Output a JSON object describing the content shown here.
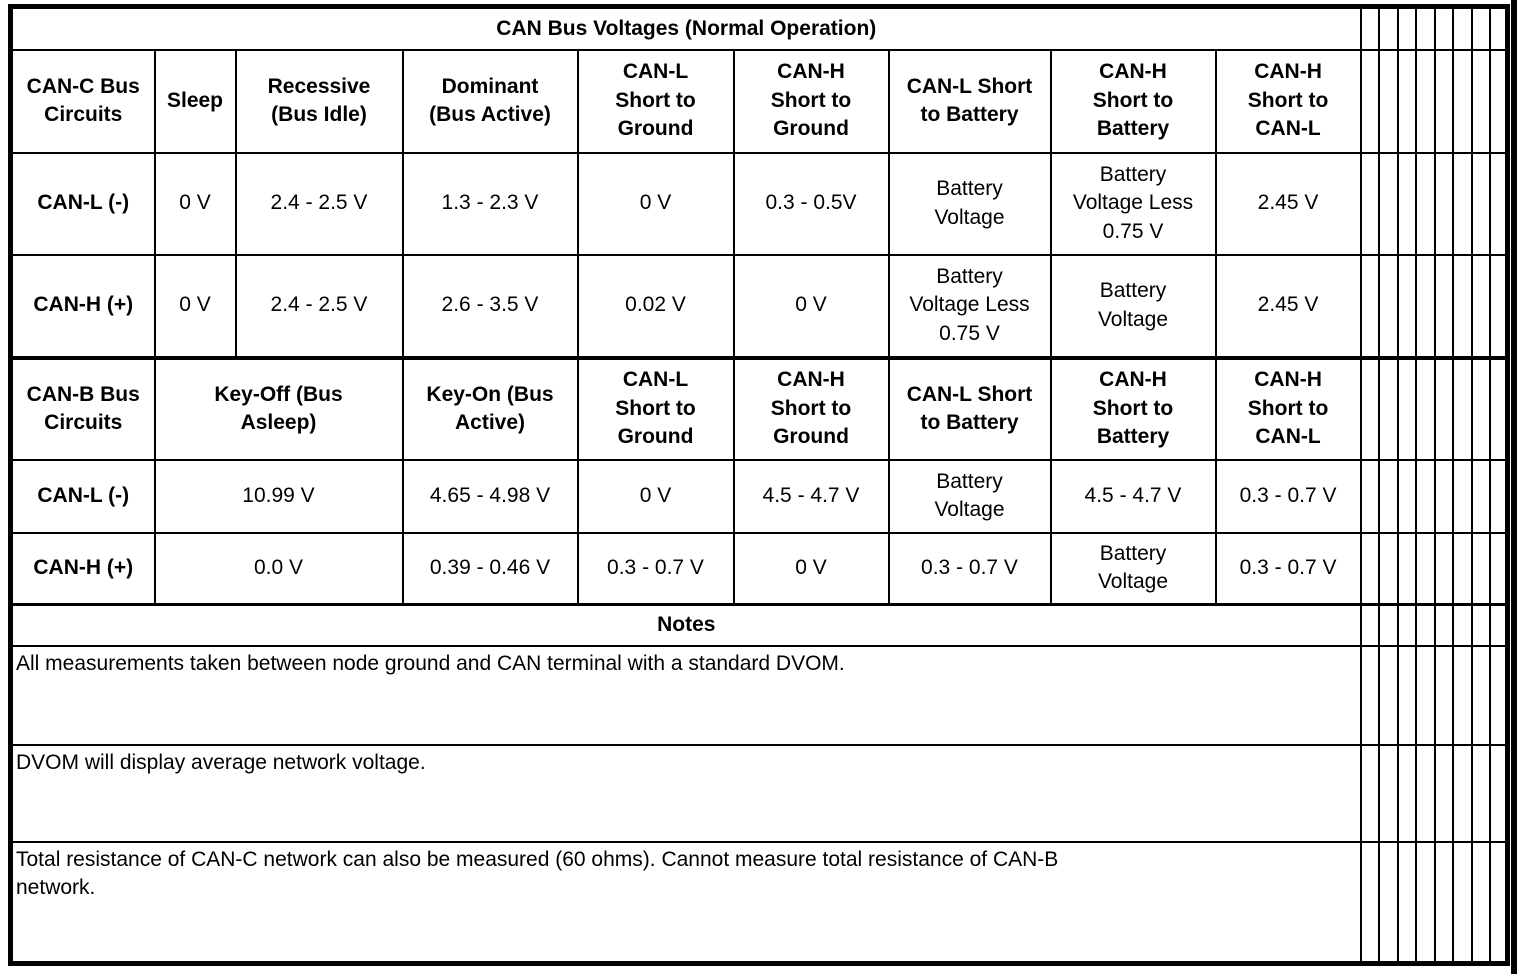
{
  "title": "CAN Bus Voltages (Normal Operation)",
  "colors": {
    "ink": "#000000",
    "paper": "#ffffff"
  },
  "canc": {
    "headers": [
      "CAN-C Bus\nCircuits",
      "Sleep",
      "Recessive\n(Bus Idle)",
      "Dominant\n(Bus Active)",
      "CAN-L\nShort to\nGround",
      "CAN-H\nShort to\nGround",
      "CAN-L Short\nto Battery",
      "CAN-H\nShort to\nBattery",
      "CAN-H\nShort to\nCAN-L"
    ],
    "rows": [
      {
        "label": "CAN-L (-)",
        "values": [
          "0 V",
          "2.4 - 2.5 V",
          "1.3 - 2.3 V",
          "0 V",
          "0.3 - 0.5V",
          "Battery\nVoltage",
          "Battery\nVoltage Less\n0.75 V",
          "2.45 V"
        ]
      },
      {
        "label": "CAN-H (+)",
        "values": [
          "0 V",
          "2.4 - 2.5 V",
          "2.6 - 3.5 V",
          "0.02 V",
          "0 V",
          "Battery\nVoltage Less\n0.75 V",
          "Battery\nVoltage",
          "2.45 V"
        ]
      }
    ]
  },
  "canb": {
    "headers": [
      "CAN-B Bus\nCircuits",
      "Key-Off (Bus\nAsleep)",
      "Key-On (Bus\nActive)",
      "CAN-L\nShort to\nGround",
      "CAN-H\nShort to\nGround",
      "CAN-L Short\nto Battery",
      "CAN-H\nShort to\nBattery",
      "CAN-H\nShort to\nCAN-L"
    ],
    "rows": [
      {
        "label": "CAN-L (-)",
        "values": [
          "10.99 V",
          "4.65 - 4.98 V",
          "0 V",
          "4.5 - 4.7 V",
          "Battery\nVoltage",
          "4.5 - 4.7 V",
          "0.3 - 0.7 V"
        ]
      },
      {
        "label": "CAN-H (+)",
        "values": [
          "0.0 V",
          "0.39 - 0.46 V",
          "0.3 - 0.7 V",
          "0 V",
          "0.3 - 0.7 V",
          "Battery\nVoltage",
          "0.3 - 0.7 V"
        ]
      }
    ]
  },
  "notes_header": "Notes",
  "notes": [
    "All measurements taken between node ground and CAN terminal with a standard DVOM.",
    "DVOM will display average network voltage.",
    "Total resistance of CAN-C network can also be measured (60 ohms). Cannot measure total resistance of CAN-B\nnetwork."
  ]
}
